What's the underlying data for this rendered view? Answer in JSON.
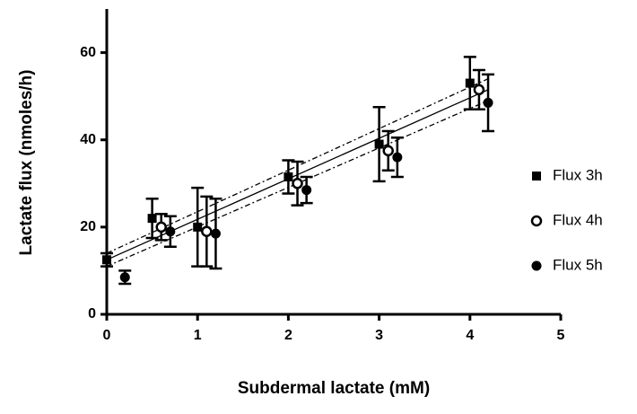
{
  "chart_data": {
    "type": "scatter",
    "x_label": "Subdermal lactate (mM)",
    "y_label": "Lactate flux (nmoles/h)",
    "xlim": [
      0,
      5
    ],
    "xticks": [
      0,
      1,
      2,
      3,
      4,
      5
    ],
    "ylim": [
      0,
      70
    ],
    "yticks": [
      0,
      20,
      40,
      60
    ],
    "legend": "right",
    "series": [
      {
        "name": "Flux 3h",
        "color": "#000000",
        "marker": "square",
        "x": [
          0,
          0.5,
          1,
          2,
          3,
          4
        ],
        "values": [
          12.5,
          22,
          20,
          31.5,
          39,
          53
        ],
        "errors": [
          1.5,
          4.5,
          9,
          3.8,
          8.5,
          6
        ]
      },
      {
        "name": "Flux 4h",
        "color": "#000000",
        "marker": "circle-open",
        "x": [
          0.6,
          1.1,
          2.1,
          3.1,
          4.1
        ],
        "values": [
          20,
          19,
          30,
          37.5,
          51.5
        ],
        "errors": [
          3,
          8,
          5,
          4.5,
          4.5
        ]
      },
      {
        "name": "Flux 5h",
        "color": "#000000",
        "marker": "circle",
        "x": [
          0.2,
          0.7,
          1.2,
          2.2,
          3.2,
          4.2
        ],
        "values": [
          8.5,
          19,
          18.5,
          28.5,
          36,
          48.5
        ],
        "errors": [
          1.5,
          3.5,
          8,
          3,
          4.5,
          6.5
        ]
      }
    ],
    "fit_lines": [
      {
        "style": "solid",
        "x": [
          0,
          4.2
        ],
        "values": [
          12.5,
          51.5
        ]
      },
      {
        "style": "dashed",
        "x": [
          0,
          4.2
        ],
        "values": [
          14,
          54
        ]
      },
      {
        "style": "dashed",
        "x": [
          0,
          4.2
        ],
        "values": [
          11,
          49
        ]
      }
    ]
  }
}
